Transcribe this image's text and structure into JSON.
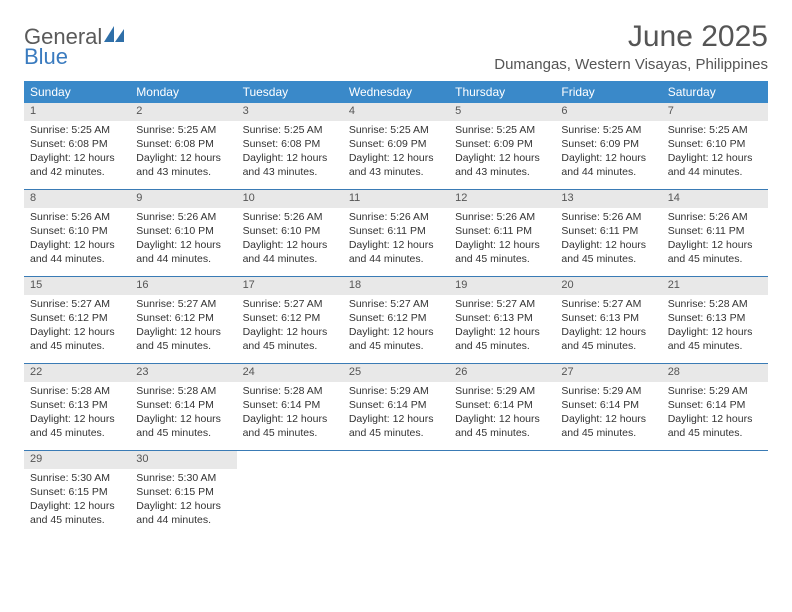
{
  "brand": {
    "line1": "General",
    "line2": "Blue",
    "logo_color": "#2f6fa8"
  },
  "colors": {
    "header_bg": "#3a89c9",
    "header_text": "#ffffff",
    "daynum_bg": "#e8e8e8",
    "week_border": "#3a7bb5",
    "text": "#333333",
    "title_text": "#555555"
  },
  "title": "June 2025",
  "location": "Dumangas, Western Visayas, Philippines",
  "weekdays": [
    "Sunday",
    "Monday",
    "Tuesday",
    "Wednesday",
    "Thursday",
    "Friday",
    "Saturday"
  ],
  "weeks": [
    [
      {
        "n": "1",
        "sr": "Sunrise: 5:25 AM",
        "ss": "Sunset: 6:08 PM",
        "dl1": "Daylight: 12 hours",
        "dl2": "and 42 minutes."
      },
      {
        "n": "2",
        "sr": "Sunrise: 5:25 AM",
        "ss": "Sunset: 6:08 PM",
        "dl1": "Daylight: 12 hours",
        "dl2": "and 43 minutes."
      },
      {
        "n": "3",
        "sr": "Sunrise: 5:25 AM",
        "ss": "Sunset: 6:08 PM",
        "dl1": "Daylight: 12 hours",
        "dl2": "and 43 minutes."
      },
      {
        "n": "4",
        "sr": "Sunrise: 5:25 AM",
        "ss": "Sunset: 6:09 PM",
        "dl1": "Daylight: 12 hours",
        "dl2": "and 43 minutes."
      },
      {
        "n": "5",
        "sr": "Sunrise: 5:25 AM",
        "ss": "Sunset: 6:09 PM",
        "dl1": "Daylight: 12 hours",
        "dl2": "and 43 minutes."
      },
      {
        "n": "6",
        "sr": "Sunrise: 5:25 AM",
        "ss": "Sunset: 6:09 PM",
        "dl1": "Daylight: 12 hours",
        "dl2": "and 44 minutes."
      },
      {
        "n": "7",
        "sr": "Sunrise: 5:25 AM",
        "ss": "Sunset: 6:10 PM",
        "dl1": "Daylight: 12 hours",
        "dl2": "and 44 minutes."
      }
    ],
    [
      {
        "n": "8",
        "sr": "Sunrise: 5:26 AM",
        "ss": "Sunset: 6:10 PM",
        "dl1": "Daylight: 12 hours",
        "dl2": "and 44 minutes."
      },
      {
        "n": "9",
        "sr": "Sunrise: 5:26 AM",
        "ss": "Sunset: 6:10 PM",
        "dl1": "Daylight: 12 hours",
        "dl2": "and 44 minutes."
      },
      {
        "n": "10",
        "sr": "Sunrise: 5:26 AM",
        "ss": "Sunset: 6:10 PM",
        "dl1": "Daylight: 12 hours",
        "dl2": "and 44 minutes."
      },
      {
        "n": "11",
        "sr": "Sunrise: 5:26 AM",
        "ss": "Sunset: 6:11 PM",
        "dl1": "Daylight: 12 hours",
        "dl2": "and 44 minutes."
      },
      {
        "n": "12",
        "sr": "Sunrise: 5:26 AM",
        "ss": "Sunset: 6:11 PM",
        "dl1": "Daylight: 12 hours",
        "dl2": "and 45 minutes."
      },
      {
        "n": "13",
        "sr": "Sunrise: 5:26 AM",
        "ss": "Sunset: 6:11 PM",
        "dl1": "Daylight: 12 hours",
        "dl2": "and 45 minutes."
      },
      {
        "n": "14",
        "sr": "Sunrise: 5:26 AM",
        "ss": "Sunset: 6:11 PM",
        "dl1": "Daylight: 12 hours",
        "dl2": "and 45 minutes."
      }
    ],
    [
      {
        "n": "15",
        "sr": "Sunrise: 5:27 AM",
        "ss": "Sunset: 6:12 PM",
        "dl1": "Daylight: 12 hours",
        "dl2": "and 45 minutes."
      },
      {
        "n": "16",
        "sr": "Sunrise: 5:27 AM",
        "ss": "Sunset: 6:12 PM",
        "dl1": "Daylight: 12 hours",
        "dl2": "and 45 minutes."
      },
      {
        "n": "17",
        "sr": "Sunrise: 5:27 AM",
        "ss": "Sunset: 6:12 PM",
        "dl1": "Daylight: 12 hours",
        "dl2": "and 45 minutes."
      },
      {
        "n": "18",
        "sr": "Sunrise: 5:27 AM",
        "ss": "Sunset: 6:12 PM",
        "dl1": "Daylight: 12 hours",
        "dl2": "and 45 minutes."
      },
      {
        "n": "19",
        "sr": "Sunrise: 5:27 AM",
        "ss": "Sunset: 6:13 PM",
        "dl1": "Daylight: 12 hours",
        "dl2": "and 45 minutes."
      },
      {
        "n": "20",
        "sr": "Sunrise: 5:27 AM",
        "ss": "Sunset: 6:13 PM",
        "dl1": "Daylight: 12 hours",
        "dl2": "and 45 minutes."
      },
      {
        "n": "21",
        "sr": "Sunrise: 5:28 AM",
        "ss": "Sunset: 6:13 PM",
        "dl1": "Daylight: 12 hours",
        "dl2": "and 45 minutes."
      }
    ],
    [
      {
        "n": "22",
        "sr": "Sunrise: 5:28 AM",
        "ss": "Sunset: 6:13 PM",
        "dl1": "Daylight: 12 hours",
        "dl2": "and 45 minutes."
      },
      {
        "n": "23",
        "sr": "Sunrise: 5:28 AM",
        "ss": "Sunset: 6:14 PM",
        "dl1": "Daylight: 12 hours",
        "dl2": "and 45 minutes."
      },
      {
        "n": "24",
        "sr": "Sunrise: 5:28 AM",
        "ss": "Sunset: 6:14 PM",
        "dl1": "Daylight: 12 hours",
        "dl2": "and 45 minutes."
      },
      {
        "n": "25",
        "sr": "Sunrise: 5:29 AM",
        "ss": "Sunset: 6:14 PM",
        "dl1": "Daylight: 12 hours",
        "dl2": "and 45 minutes."
      },
      {
        "n": "26",
        "sr": "Sunrise: 5:29 AM",
        "ss": "Sunset: 6:14 PM",
        "dl1": "Daylight: 12 hours",
        "dl2": "and 45 minutes."
      },
      {
        "n": "27",
        "sr": "Sunrise: 5:29 AM",
        "ss": "Sunset: 6:14 PM",
        "dl1": "Daylight: 12 hours",
        "dl2": "and 45 minutes."
      },
      {
        "n": "28",
        "sr": "Sunrise: 5:29 AM",
        "ss": "Sunset: 6:14 PM",
        "dl1": "Daylight: 12 hours",
        "dl2": "and 45 minutes."
      }
    ],
    [
      {
        "n": "29",
        "sr": "Sunrise: 5:30 AM",
        "ss": "Sunset: 6:15 PM",
        "dl1": "Daylight: 12 hours",
        "dl2": "and 45 minutes."
      },
      {
        "n": "30",
        "sr": "Sunrise: 5:30 AM",
        "ss": "Sunset: 6:15 PM",
        "dl1": "Daylight: 12 hours",
        "dl2": "and 44 minutes."
      },
      null,
      null,
      null,
      null,
      null
    ]
  ]
}
